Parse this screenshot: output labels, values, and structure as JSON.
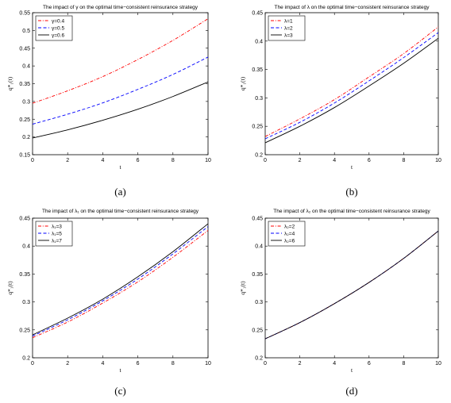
{
  "chart_data": [
    {
      "type": "line",
      "caption": "(a)",
      "title": "The impact of γ on the optimal time−consistent reinsurance strategy",
      "xlabel": "t",
      "ylabel": "q*₁(t)",
      "xlim": [
        0,
        10
      ],
      "ylim": [
        0.15,
        0.55
      ],
      "xticks": [
        0,
        2,
        4,
        6,
        8,
        10
      ],
      "yticks": [
        0.15,
        0.2,
        0.25,
        0.3,
        0.35,
        0.4,
        0.45,
        0.5,
        0.55
      ],
      "legend_position": "top-left",
      "x": [
        0,
        2,
        4,
        6,
        8,
        10
      ],
      "series": [
        {
          "name": "γ=0.4",
          "color": "#ff0000",
          "dash": "dashdot",
          "values": [
            0.295,
            0.33,
            0.37,
            0.418,
            0.472,
            0.533
          ]
        },
        {
          "name": "γ=0.5",
          "color": "#0000ff",
          "dash": "dash",
          "values": [
            0.236,
            0.264,
            0.296,
            0.334,
            0.376,
            0.425
          ]
        },
        {
          "name": "γ=0.6",
          "color": "#000000",
          "dash": "solid",
          "values": [
            0.197,
            0.22,
            0.247,
            0.278,
            0.314,
            0.355
          ]
        }
      ]
    },
    {
      "type": "line",
      "caption": "(b)",
      "title": "The impact of λ on the optimal time−consistent reinsurance strategy",
      "xlabel": "t",
      "ylabel": "q*₁(t)",
      "xlim": [
        0,
        10
      ],
      "ylim": [
        0.2,
        0.45
      ],
      "xticks": [
        0,
        2,
        4,
        6,
        8,
        10
      ],
      "yticks": [
        0.2,
        0.25,
        0.3,
        0.35,
        0.4,
        0.45
      ],
      "legend_position": "top-left",
      "x": [
        0,
        2,
        4,
        6,
        8,
        10
      ],
      "series": [
        {
          "name": "λ=1",
          "color": "#ff0000",
          "dash": "dashdot",
          "values": [
            0.232,
            0.263,
            0.297,
            0.337,
            0.378,
            0.425
          ]
        },
        {
          "name": "λ=2",
          "color": "#0000ff",
          "dash": "dash",
          "values": [
            0.228,
            0.257,
            0.291,
            0.33,
            0.371,
            0.415
          ]
        },
        {
          "name": "λ=3",
          "color": "#000000",
          "dash": "solid",
          "values": [
            0.221,
            0.25,
            0.283,
            0.321,
            0.361,
            0.405
          ]
        }
      ]
    },
    {
      "type": "line",
      "caption": "(c)",
      "title": "The impact of λ₁ on the optimal time−consistent reinsurance strategy",
      "xlabel": "t",
      "ylabel": "q*₁(t)",
      "xlim": [
        0,
        10
      ],
      "ylim": [
        0.2,
        0.45
      ],
      "xticks": [
        0,
        2,
        4,
        6,
        8,
        10
      ],
      "yticks": [
        0.2,
        0.25,
        0.3,
        0.35,
        0.4,
        0.45
      ],
      "legend_position": "top-left",
      "x": [
        0,
        2,
        4,
        6,
        8,
        10
      ],
      "series": [
        {
          "name": "λ₁=3",
          "color": "#ff0000",
          "dash": "dashdot",
          "values": [
            0.236,
            0.264,
            0.298,
            0.336,
            0.38,
            0.428
          ]
        },
        {
          "name": "λ₁=5",
          "color": "#0000ff",
          "dash": "dash",
          "values": [
            0.239,
            0.268,
            0.302,
            0.341,
            0.386,
            0.435
          ]
        },
        {
          "name": "λ₁=7",
          "color": "#000000",
          "dash": "solid",
          "values": [
            0.241,
            0.271,
            0.305,
            0.345,
            0.39,
            0.44
          ]
        }
      ]
    },
    {
      "type": "line",
      "caption": "(d)",
      "title": "The impact of λ₂ on the optimal time−consistent reinsurance strategy",
      "xlabel": "t",
      "ylabel": "q*₁(t)",
      "xlim": [
        0,
        10
      ],
      "ylim": [
        0.2,
        0.45
      ],
      "xticks": [
        0,
        2,
        4,
        6,
        8,
        10
      ],
      "yticks": [
        0.2,
        0.25,
        0.3,
        0.35,
        0.4,
        0.45
      ],
      "legend_position": "top-left",
      "x": [
        0,
        2,
        4,
        6,
        8,
        10
      ],
      "series": [
        {
          "name": "λ₂=2",
          "color": "#ff0000",
          "dash": "dashdot",
          "values": [
            0.234,
            0.263,
            0.297,
            0.335,
            0.378,
            0.427
          ]
        },
        {
          "name": "λ₂=4",
          "color": "#0000ff",
          "dash": "dash",
          "values": [
            0.234,
            0.263,
            0.297,
            0.335,
            0.378,
            0.427
          ]
        },
        {
          "name": "λ₂=6",
          "color": "#000000",
          "dash": "solid",
          "values": [
            0.234,
            0.263,
            0.297,
            0.335,
            0.378,
            0.427
          ]
        }
      ]
    }
  ]
}
